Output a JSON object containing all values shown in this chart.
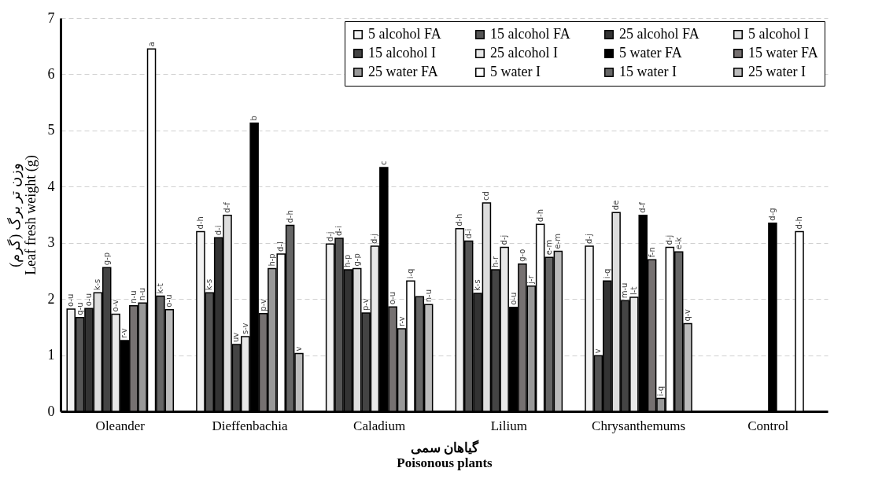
{
  "chart_data": {
    "type": "bar",
    "xlabel": "گیاهان سمی\nPoisonous plants",
    "ylabel": "وزن تر برگ (گرم)\nLeaf fresh weight (g)",
    "categories": [
      "Oleander",
      "Dieffenbachia",
      "Caladium",
      "Lilium",
      "Chrysanthemums",
      "Control"
    ],
    "ylim": [
      0,
      7
    ],
    "yticks": [
      0,
      1,
      2,
      3,
      4,
      5,
      6,
      7
    ],
    "grid": "y",
    "legend": "top right",
    "series": [
      {
        "name": "5 alcohol FA",
        "color": "#f2f2f2",
        "values": [
          1.82,
          3.2,
          2.98,
          3.25,
          2.94,
          null
        ],
        "value_labels": [
          "o-u",
          "d-h",
          "d-j",
          "d-h",
          "d-j",
          null
        ]
      },
      {
        "name": "15 alcohol FA",
        "color": "#555555",
        "values": [
          1.67,
          2.11,
          3.08,
          3.03,
          0.99,
          null
        ],
        "value_labels": [
          "q-u",
          "k-s",
          "d-i",
          "d-i",
          "v",
          null
        ]
      },
      {
        "name": "25 alcohol FA",
        "color": "#333333",
        "values": [
          1.83,
          3.09,
          2.52,
          2.1,
          2.32,
          null
        ],
        "value_labels": [
          "o-u",
          "d-i",
          "h-p",
          "k-s",
          "i-q",
          null
        ]
      },
      {
        "name": "5 alcohol I",
        "color": "#dddddd",
        "values": [
          2.11,
          3.49,
          2.54,
          3.71,
          3.54,
          null
        ],
        "value_labels": [
          "k-s",
          "d-f",
          "g-p",
          "cd",
          "de",
          null
        ]
      },
      {
        "name": "15 alcohol I",
        "color": "#444444",
        "values": [
          2.56,
          1.19,
          1.75,
          2.52,
          1.97,
          null
        ],
        "value_labels": [
          "g-p",
          "uv",
          "p-v",
          "h-r",
          "m-u",
          null
        ]
      },
      {
        "name": "25 alcohol I",
        "color": "#e8e8e8",
        "values": [
          1.73,
          1.33,
          2.94,
          2.92,
          2.03,
          null
        ],
        "value_labels": [
          "o-v",
          "s-v",
          "d-j",
          "d-j",
          "l-t",
          null
        ]
      },
      {
        "name": "5 water FA",
        "color": "#000000",
        "values": [
          1.26,
          5.13,
          4.34,
          1.85,
          3.49,
          3.35
        ],
        "value_labels": [
          "r-v",
          "b",
          "c",
          "o-u",
          "d-f",
          "d-g"
        ]
      },
      {
        "name": "15 water FA",
        "color": "#767171",
        "values": [
          1.88,
          1.74,
          1.86,
          2.62,
          2.7,
          null
        ],
        "value_labels": [
          "n-u",
          "p-v",
          "o-u",
          "g-o",
          "f-n",
          null
        ]
      },
      {
        "name": "25 water FA",
        "color": "#999999",
        "values": [
          1.93,
          2.54,
          1.47,
          2.23,
          0.23,
          null
        ],
        "value_labels": [
          "n-u",
          "h-p",
          "r-v",
          "j-r",
          "i-q",
          null
        ]
      },
      {
        "name": "5 water I",
        "color": "#ffffff",
        "values": [
          6.45,
          2.8,
          2.32,
          3.33,
          2.92,
          3.2
        ],
        "value_labels": [
          "a",
          "d-l",
          "i-q",
          "d-h",
          "d-j",
          "d-h"
        ]
      },
      {
        "name": "15 water I",
        "color": "#666666",
        "values": [
          2.05,
          3.31,
          2.04,
          2.74,
          2.84,
          null
        ],
        "value_labels": [
          "k-t",
          "d-h",
          null,
          "e-m",
          "e-k",
          null
        ]
      },
      {
        "name": "25 water I",
        "color": "#bbbbbb",
        "values": [
          1.81,
          1.03,
          1.9,
          2.85,
          1.56,
          null
        ],
        "value_labels": [
          "o-u",
          "v",
          "n-u",
          "e-m",
          "q-v",
          null
        ]
      }
    ]
  }
}
